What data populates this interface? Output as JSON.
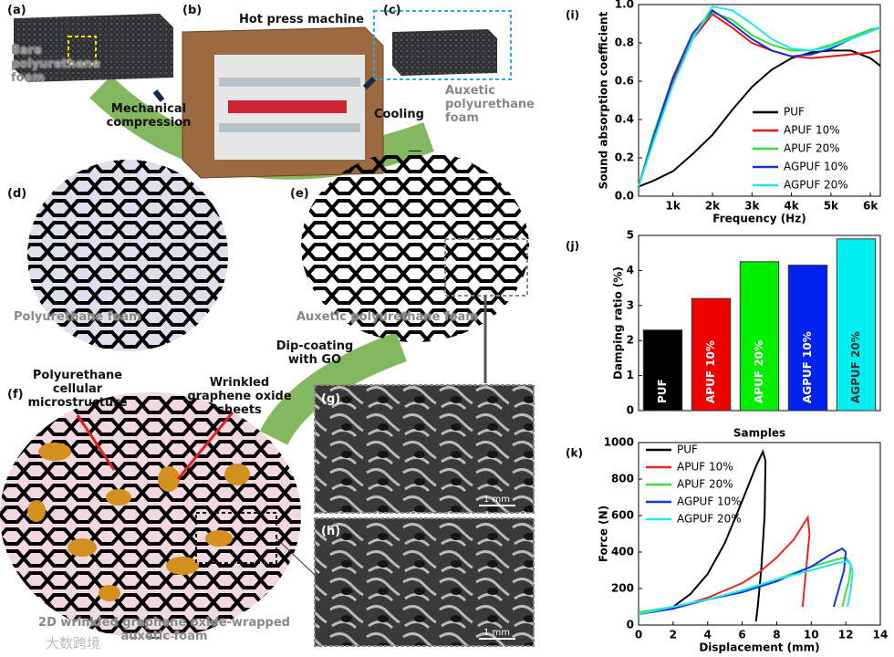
{
  "figure": {
    "labels": {
      "a": "(a)",
      "a_text": "Bare polyurethane foam",
      "b": "(b)",
      "b_text": "Hot press machine",
      "compression": "Mechanical compression",
      "c": "(c)",
      "cooling": "Cooling",
      "c_text": "Auxetic polyurethane foam",
      "d": "(d)",
      "d_text": "Polyurethane foam",
      "e": "(e)",
      "e_text": "Auxetic polyurethane foam",
      "f": "(f)",
      "microstructure": "Polyurethane cellular microstructure",
      "sheets": "Wrinkled graphene oxide sheets",
      "dip": "Dip-coating with GO",
      "g": "(g)",
      "g_scale": "1 mm",
      "h": "(h)",
      "h_scale": "1 mm",
      "f_text": "2D wrinkled graphene oxide-wrapped auxetic foam",
      "watermark": "大数跨境"
    }
  },
  "chart_data": [
    {
      "type": "line",
      "panel": "(i)",
      "x_label": "Frequency (Hz)",
      "y_label": "Sound absorption coefficient",
      "x": [
        130,
        500,
        1000,
        1500,
        2000,
        2500,
        3000,
        3500,
        4000,
        4500,
        5000,
        5500,
        6000,
        6250
      ],
      "xlim": [
        130,
        6250
      ],
      "xticks": [
        {
          "value": 1000,
          "label": "1k"
        },
        {
          "value": 2000,
          "label": "2k"
        },
        {
          "value": 3000,
          "label": "3k"
        },
        {
          "value": 4000,
          "label": "4k"
        },
        {
          "value": 5000,
          "label": "5k"
        },
        {
          "value": 6000,
          "label": "6k"
        }
      ],
      "ylim": [
        0,
        1.0
      ],
      "yticks": [
        {
          "value": 0,
          "label": "0.0"
        },
        0.2,
        0.4,
        0.6,
        0.8,
        {
          "value": 1,
          "label": "1.0"
        }
      ],
      "legend": "lower right",
      "series": [
        {
          "name": "PUF",
          "color": "#000000",
          "values": [
            0.05,
            0.08,
            0.13,
            0.22,
            0.32,
            0.45,
            0.57,
            0.66,
            0.72,
            0.75,
            0.76,
            0.76,
            0.72,
            0.68
          ]
        },
        {
          "name": "APUF 10%",
          "color": "#ee1111",
          "values": [
            0.05,
            0.3,
            0.6,
            0.82,
            0.95,
            0.88,
            0.8,
            0.76,
            0.73,
            0.72,
            0.73,
            0.74,
            0.75,
            0.76
          ]
        },
        {
          "name": "APUF 20%",
          "color": "#33dd33",
          "values": [
            0.05,
            0.32,
            0.62,
            0.84,
            0.96,
            0.92,
            0.84,
            0.79,
            0.76,
            0.76,
            0.79,
            0.83,
            0.87,
            0.88
          ]
        },
        {
          "name": "AGPUF 10%",
          "color": "#1133dd",
          "values": [
            0.05,
            0.3,
            0.62,
            0.85,
            0.97,
            0.9,
            0.82,
            0.76,
            0.73,
            0.74,
            0.77,
            0.82,
            0.86,
            0.88
          ]
        },
        {
          "name": "AGPUF 20%",
          "color": "#22e5f0",
          "values": [
            0.05,
            0.28,
            0.58,
            0.82,
            0.99,
            0.97,
            0.9,
            0.82,
            0.77,
            0.76,
            0.78,
            0.82,
            0.86,
            0.88
          ]
        }
      ]
    },
    {
      "type": "bar",
      "panel": "(j)",
      "x_label": "Samples",
      "y_label": "Damping ratio (%)",
      "categories": [
        "PUF",
        "APUF 10%",
        "APUF 20%",
        "AGPUF 10%",
        "AGPUF 20%"
      ],
      "values": [
        2.3,
        3.2,
        4.25,
        4.15,
        4.9
      ],
      "colors": [
        "#000000",
        "#ee0000",
        "#00ee00",
        "#0022ee",
        "#00f0f0"
      ],
      "ylim": [
        0,
        5
      ],
      "yticks": [
        0,
        1,
        2,
        3,
        4,
        5
      ]
    },
    {
      "type": "xyline",
      "panel": "(k)",
      "x_label": "Displacement (mm)",
      "y_label": "Force (N)",
      "xlim": [
        0,
        14
      ],
      "xticks": [
        0,
        2,
        4,
        6,
        8,
        10,
        12,
        14
      ],
      "ylim": [
        0,
        1000
      ],
      "yticks": [
        0,
        200,
        400,
        600,
        800,
        1000
      ],
      "legend": "upper left",
      "series": [
        {
          "name": "PUF",
          "color": "#000000",
          "x": [
            0,
            1,
            2,
            3,
            4,
            5,
            6,
            6.8,
            7.2,
            7.35,
            7.3,
            7.1,
            6.9,
            6.8
          ],
          "values": [
            60,
            75,
            100,
            170,
            280,
            450,
            680,
            870,
            950,
            900,
            600,
            300,
            100,
            20
          ]
        },
        {
          "name": "APUF 10%",
          "color": "#ee2222",
          "x": [
            0,
            2,
            4,
            6,
            7,
            8,
            9,
            9.6,
            9.8,
            9.9,
            9.7,
            9.5
          ],
          "values": [
            60,
            90,
            150,
            230,
            290,
            370,
            470,
            560,
            590,
            500,
            300,
            100
          ]
        },
        {
          "name": "APUF 20%",
          "color": "#44dd44",
          "x": [
            0,
            2,
            4,
            6,
            8,
            10,
            11.5,
            12,
            12.3,
            12.2,
            12,
            11.8
          ],
          "values": [
            70,
            100,
            140,
            190,
            250,
            320,
            360,
            370,
            330,
            250,
            180,
            100
          ]
        },
        {
          "name": "AGPUF 10%",
          "color": "#1133dd",
          "x": [
            0,
            2,
            4,
            6,
            8,
            10,
            11,
            11.8,
            12,
            11.9,
            11.6,
            11.3
          ],
          "values": [
            60,
            90,
            140,
            180,
            240,
            320,
            380,
            420,
            400,
            300,
            200,
            100
          ]
        },
        {
          "name": "AGPUF 20%",
          "color": "#22e5f0",
          "x": [
            0,
            2,
            4,
            6,
            8,
            10,
            11.5,
            12.2,
            12.4,
            12.3,
            12.1
          ],
          "values": [
            60,
            100,
            140,
            190,
            250,
            300,
            340,
            350,
            300,
            200,
            100
          ]
        }
      ]
    }
  ]
}
